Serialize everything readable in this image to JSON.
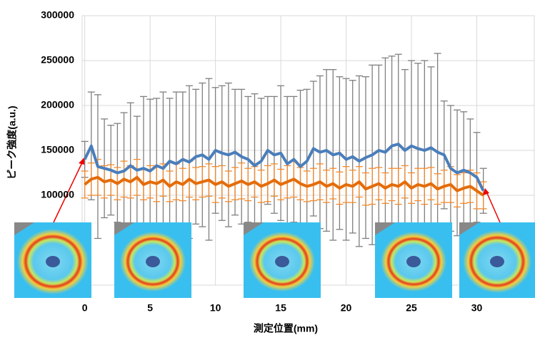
{
  "chart_data": {
    "type": "line",
    "x_label": "測定位置(mm)",
    "y_label": "ピーク強度(a.u.)",
    "x": [
      0,
      0.5,
      1,
      1.5,
      2,
      2.5,
      3,
      3.5,
      4,
      4.5,
      5,
      5.5,
      6,
      6.5,
      7,
      7.5,
      8,
      8.5,
      9,
      9.5,
      10,
      10.5,
      11,
      11.5,
      12,
      12.5,
      13,
      13.5,
      14,
      14.5,
      15,
      15.5,
      16,
      16.5,
      17,
      17.5,
      18,
      18.5,
      19,
      19.5,
      20,
      20.5,
      21,
      21.5,
      22,
      22.5,
      23,
      23.5,
      24,
      24.5,
      25,
      25.5,
      26,
      26.5,
      27,
      27.5,
      28,
      28.5,
      29,
      29.5,
      30,
      30.5
    ],
    "series": [
      {
        "color": "#4a7ebb",
        "error_color": "#7f7f7f",
        "values": [
          140000,
          155000,
          132000,
          130000,
          128000,
          125000,
          127000,
          133000,
          128000,
          130000,
          127000,
          133000,
          130000,
          138000,
          135000,
          140000,
          137000,
          143000,
          145000,
          140000,
          150000,
          147000,
          145000,
          148000,
          143000,
          140000,
          133000,
          138000,
          150000,
          145000,
          147000,
          135000,
          140000,
          132000,
          138000,
          152000,
          148000,
          150000,
          145000,
          147000,
          140000,
          143000,
          138000,
          142000,
          145000,
          150000,
          148000,
          155000,
          157000,
          150000,
          155000,
          152000,
          150000,
          153000,
          148000,
          145000,
          130000,
          125000,
          128000,
          125000,
          120000,
          105000
        ],
        "errors": [
          20000,
          60000,
          80000,
          55000,
          50000,
          55000,
          65000,
          70000,
          60000,
          80000,
          80000,
          75000,
          85000,
          70000,
          80000,
          75000,
          85000,
          75000,
          80000,
          90000,
          70000,
          75000,
          80000,
          70000,
          75000,
          70000,
          80000,
          70000,
          60000,
          65000,
          75000,
          75000,
          70000,
          85000,
          80000,
          75000,
          85000,
          90000,
          95000,
          85000,
          90000,
          85000,
          95000,
          90000,
          100000,
          95000,
          105000,
          100000,
          100000,
          90000,
          95000,
          95000,
          100000,
          90000,
          110000,
          60000,
          70000,
          70000,
          65000,
          60000,
          50000,
          25000
        ]
      },
      {
        "color": "#e46c0a",
        "error_color": "#f28a2e",
        "values": [
          112000,
          118000,
          120000,
          115000,
          117000,
          113000,
          118000,
          115000,
          120000,
          112000,
          115000,
          113000,
          117000,
          110000,
          115000,
          112000,
          118000,
          113000,
          115000,
          117000,
          112000,
          115000,
          110000,
          113000,
          116000,
          112000,
          115000,
          110000,
          113000,
          117000,
          112000,
          115000,
          118000,
          113000,
          110000,
          112000,
          115000,
          110000,
          113000,
          108000,
          112000,
          110000,
          115000,
          107000,
          110000,
          113000,
          108000,
          112000,
          110000,
          115000,
          108000,
          112000,
          110000,
          113000,
          107000,
          110000,
          112000,
          105000,
          108000,
          110000,
          105000,
          100000
        ],
        "errors": [
          15000,
          18000,
          20000,
          18000,
          17000,
          18000,
          20000,
          18000,
          20000,
          17000,
          18000,
          20000,
          18000,
          17000,
          20000,
          18000,
          20000,
          18000,
          17000,
          18000,
          20000,
          18000,
          17000,
          18000,
          20000,
          18000,
          17000,
          18000,
          20000,
          18000,
          17000,
          18000,
          20000,
          18000,
          17000,
          18000,
          20000,
          18000,
          17000,
          18000,
          20000,
          18000,
          17000,
          18000,
          20000,
          18000,
          17000,
          18000,
          20000,
          18000,
          17000,
          18000,
          20000,
          18000,
          17000,
          18000,
          20000,
          18000,
          17000,
          18000,
          20000,
          15000
        ]
      }
    ],
    "xlim": [
      -0.2,
      34.4
    ],
    "xticks": [
      0,
      5,
      10,
      15,
      20,
      25,
      30
    ],
    "ylim": [
      0,
      300000
    ],
    "yticks": [
      100000,
      150000,
      200000,
      250000,
      300000
    ],
    "grid": true
  }
}
